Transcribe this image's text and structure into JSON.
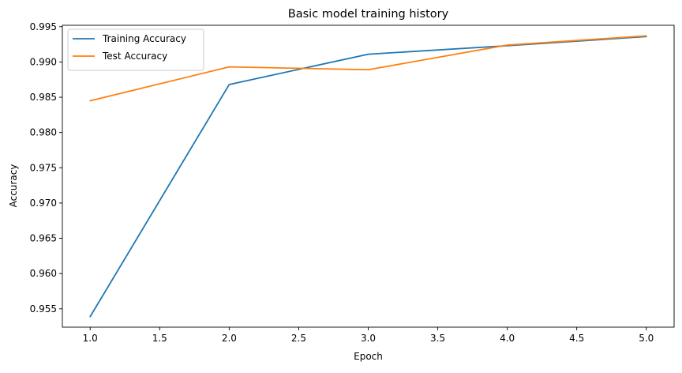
{
  "chart_data": {
    "type": "line",
    "title": "Basic model training history",
    "xlabel": "Epoch",
    "ylabel": "Accuracy",
    "x": [
      1,
      2,
      3,
      4,
      5
    ],
    "xlim": [
      0.8,
      5.2
    ],
    "ylim": [
      0.9524,
      0.9952
    ],
    "xticks": [
      1.0,
      1.5,
      2.0,
      2.5,
      3.0,
      3.5,
      4.0,
      4.5,
      5.0
    ],
    "xtick_labels": [
      "1.0",
      "1.5",
      "2.0",
      "2.5",
      "3.0",
      "3.5",
      "4.0",
      "4.5",
      "5.0"
    ],
    "yticks": [
      0.955,
      0.96,
      0.965,
      0.97,
      0.975,
      0.98,
      0.985,
      0.99,
      0.995
    ],
    "ytick_labels": [
      "0.955",
      "0.960",
      "0.965",
      "0.970",
      "0.975",
      "0.980",
      "0.985",
      "0.990",
      "0.995"
    ],
    "grid": false,
    "legend_position": "top-left",
    "series": [
      {
        "name": "Training Accuracy",
        "color": "#1f77b4",
        "values": [
          0.9539,
          0.9868,
          0.9911,
          0.9923,
          0.9936
        ]
      },
      {
        "name": "Test Accuracy",
        "color": "#ff7f0e",
        "values": [
          0.9845,
          0.9893,
          0.9889,
          0.9924,
          0.9937
        ]
      }
    ]
  }
}
